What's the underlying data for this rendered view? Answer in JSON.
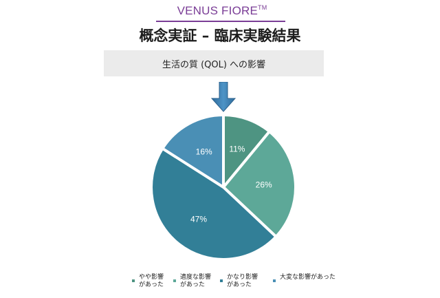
{
  "header": {
    "brand": "VENUS FIORE",
    "brand_mark": "TM",
    "title": "概念実証 – 臨床実験結果",
    "subtitle": "生活の質 (QOL) への影響"
  },
  "colors": {
    "brand": "#7a3d96",
    "arrow": "#3f7fb0",
    "subtitle_bg": "#ebebeb"
  },
  "chart_data": {
    "type": "pie",
    "start": "12 o'clock, clockwise",
    "slices": [
      {
        "label": "やや影響\nがあった",
        "value": 11,
        "text": "11%",
        "color": "#4e9482"
      },
      {
        "label": "適度な影響\nがあった",
        "value": 26,
        "text": "26%",
        "color": "#5da898"
      },
      {
        "label": "かなり影響\nがあった",
        "value": 47,
        "text": "47%",
        "color": "#327f97"
      },
      {
        "label": "大変な影響があった",
        "value": 16,
        "text": "16%",
        "color": "#4a8fb5"
      }
    ],
    "legend_position": "bottom"
  }
}
